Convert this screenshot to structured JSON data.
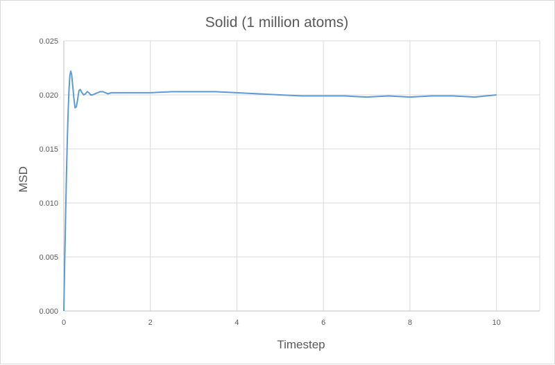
{
  "chart_data": {
    "type": "line",
    "title": "Solid (1 million atoms)",
    "xlabel": "Timestep",
    "ylabel": "MSD",
    "xlim": [
      0,
      11
    ],
    "ylim": [
      0,
      0.025
    ],
    "x_ticks": [
      "0",
      "2",
      "4",
      "6",
      "8",
      "10"
    ],
    "x_tick_values": [
      0,
      2,
      4,
      6,
      8,
      10
    ],
    "y_ticks": [
      "0.000",
      "0.005",
      "0.010",
      "0.015",
      "0.020",
      "0.025"
    ],
    "y_tick_values": [
      0,
      0.005,
      0.01,
      0.015,
      0.02,
      0.025
    ],
    "grid": true,
    "legend": "none",
    "line_color": "#5b9bd5",
    "grid_color": "#d9d9d9",
    "series": [
      {
        "x": [
          0,
          0.02,
          0.04,
          0.06,
          0.08,
          0.1,
          0.12,
          0.14,
          0.16,
          0.18,
          0.2,
          0.23,
          0.26,
          0.29,
          0.32,
          0.35,
          0.38,
          0.42,
          0.46,
          0.5,
          0.54,
          0.58,
          0.62,
          0.66,
          0.72,
          0.78,
          0.84,
          0.9,
          0.96,
          1.02,
          1.1,
          1.2,
          1.5,
          2.0,
          2.5,
          3.0,
          3.5,
          4.0,
          4.5,
          5.0,
          5.5,
          6.0,
          6.5,
          7.0,
          7.5,
          8.0,
          8.5,
          9.0,
          9.5,
          10.0
        ],
        "y": [
          0.0,
          0.0045,
          0.0085,
          0.0125,
          0.0158,
          0.0185,
          0.0205,
          0.0218,
          0.0222,
          0.0219,
          0.0211,
          0.0198,
          0.0188,
          0.0189,
          0.0196,
          0.0204,
          0.0205,
          0.0202,
          0.02,
          0.0201,
          0.0203,
          0.0202,
          0.02,
          0.02,
          0.0201,
          0.0202,
          0.0203,
          0.0203,
          0.0202,
          0.0201,
          0.0202,
          0.0202,
          0.0202,
          0.0202,
          0.0203,
          0.0203,
          0.0203,
          0.0202,
          0.0201,
          0.02,
          0.0199,
          0.0199,
          0.0199,
          0.0198,
          0.0199,
          0.0198,
          0.0199,
          0.0199,
          0.0198,
          0.02
        ]
      }
    ]
  }
}
